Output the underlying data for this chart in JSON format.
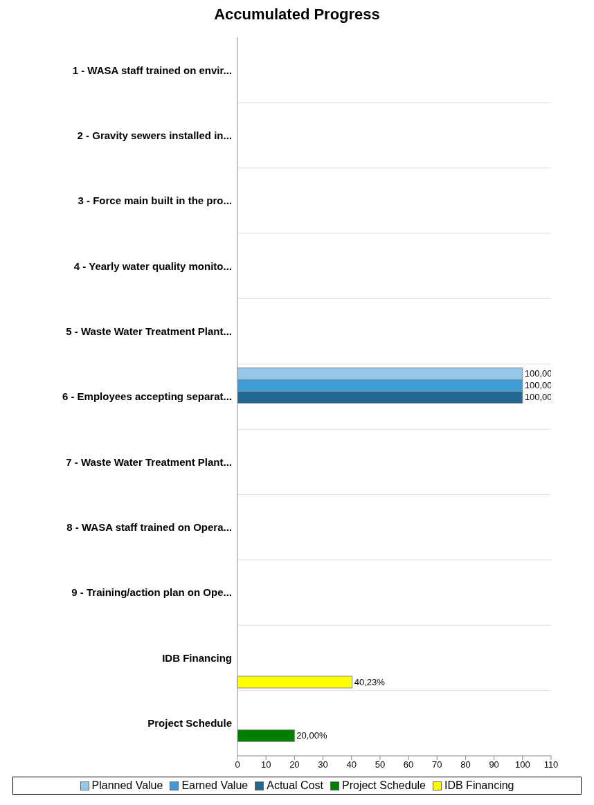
{
  "chart_data": {
    "type": "bar",
    "orientation": "horizontal",
    "title": "Accumulated Progress",
    "categories": [
      "1 - WASA staff trained on envir...",
      "2 - Gravity sewers installed in...",
      "3 - Force main built in the pro...",
      "4 - Yearly water quality monito...",
      "5 - Waste Water Treatment Plant...",
      "6 - Employees accepting separat...",
      "7 - Waste Water Treatment Plant...",
      "8 - WASA staff trained on Opera...",
      "9 - Training/action plan on Ope...",
      "IDB Financing",
      "Project Schedule"
    ],
    "series": [
      {
        "name": "Planned Value",
        "color": "#95c8e8",
        "values": [
          null,
          null,
          null,
          null,
          null,
          100,
          null,
          null,
          null,
          null,
          null
        ],
        "value_labels": [
          null,
          null,
          null,
          null,
          null,
          "100,00",
          null,
          null,
          null,
          null,
          null
        ]
      },
      {
        "name": "Earned Value",
        "color": "#3f9bd6",
        "values": [
          null,
          null,
          null,
          null,
          null,
          100,
          null,
          null,
          null,
          null,
          null
        ],
        "value_labels": [
          null,
          null,
          null,
          null,
          null,
          "100,00",
          null,
          null,
          null,
          null,
          null
        ]
      },
      {
        "name": "Actual Cost",
        "color": "#216893",
        "values": [
          null,
          null,
          null,
          null,
          null,
          100,
          null,
          null,
          null,
          null,
          null
        ],
        "value_labels": [
          null,
          null,
          null,
          null,
          null,
          "100,00",
          null,
          null,
          null,
          null,
          null
        ]
      },
      {
        "name": "Project Schedule",
        "color": "#007f00",
        "values": [
          null,
          null,
          null,
          null,
          null,
          null,
          null,
          null,
          null,
          null,
          20
        ],
        "value_labels": [
          null,
          null,
          null,
          null,
          null,
          null,
          null,
          null,
          null,
          null,
          "20,00%"
        ]
      },
      {
        "name": "IDB Financing",
        "color": "#ffff00",
        "values": [
          null,
          null,
          null,
          null,
          null,
          null,
          null,
          null,
          null,
          40.23,
          null
        ],
        "value_labels": [
          null,
          null,
          null,
          null,
          null,
          null,
          null,
          null,
          null,
          "40,23%",
          null
        ]
      }
    ],
    "xlim": [
      0,
      110
    ],
    "xticks": [
      0,
      10,
      20,
      30,
      40,
      50,
      60,
      70,
      80,
      90,
      100,
      110
    ],
    "grid": "y",
    "legend": "bottom"
  }
}
